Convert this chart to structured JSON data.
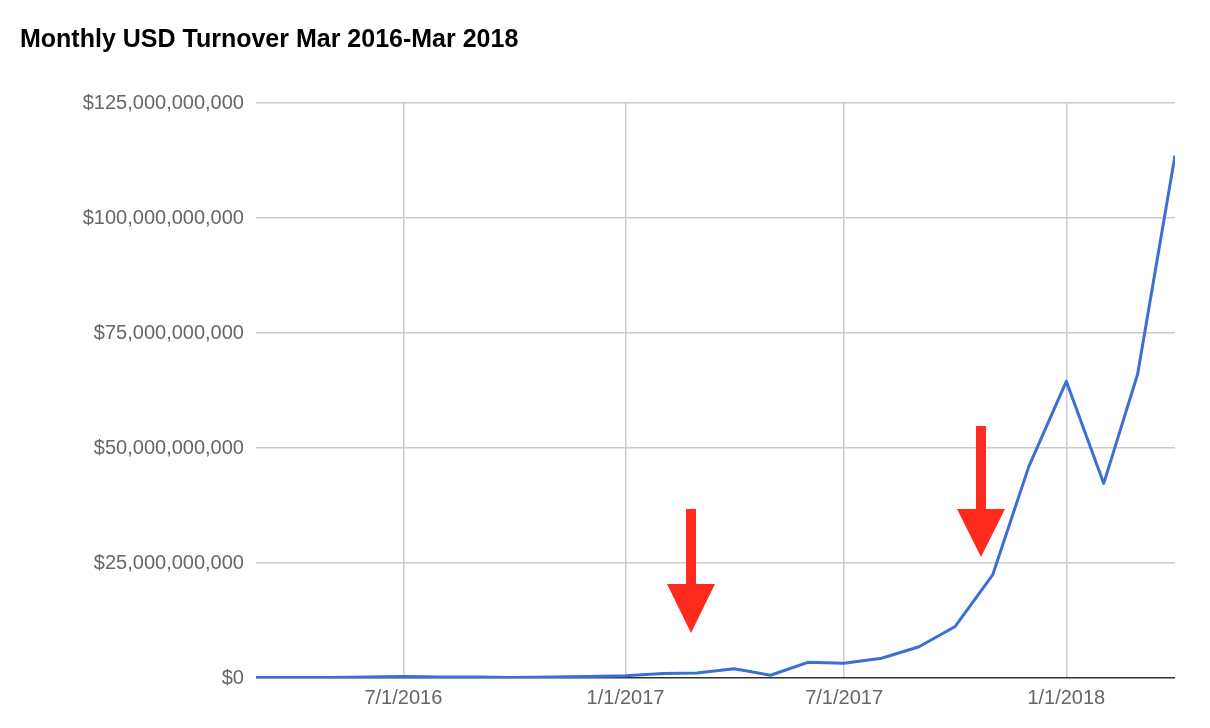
{
  "chart_data": {
    "type": "line",
    "title": "Monthly USD Turnover Mar 2016-Mar 2018",
    "x": [
      "2016-03-01",
      "2016-04-01",
      "2016-05-01",
      "2016-06-01",
      "2016-07-01",
      "2016-08-01",
      "2016-09-01",
      "2016-10-01",
      "2016-11-01",
      "2016-12-01",
      "2017-01-01",
      "2017-02-01",
      "2017-03-01",
      "2017-04-01",
      "2017-05-01",
      "2017-06-01",
      "2017-07-01",
      "2017-08-01",
      "2017-09-01",
      "2017-10-01",
      "2017-11-01",
      "2017-12-01",
      "2018-01-01",
      "2018-02-01",
      "2018-03-01",
      "2018-04-01"
    ],
    "series": [
      {
        "color": "#3c6fd4",
        "values": [
          100000000,
          100000000,
          100000000,
          200000000,
          300000000,
          200000000,
          200000000,
          100000000,
          200000000,
          300000000,
          500000000,
          1000000000,
          1100000000,
          2000000000,
          600000000,
          3400000000,
          3200000000,
          4300000000,
          6800000000,
          11200000000,
          22400000000,
          46000000000,
          64500000000,
          42300000000,
          66000000000,
          113600000000
        ]
      }
    ],
    "xlim": [
      "2016-03-01",
      "2018-04-01"
    ],
    "xticks": [
      {
        "value": "2016-07-01",
        "label": "7/1/2016"
      },
      {
        "value": "2017-01-01",
        "label": "1/1/2017"
      },
      {
        "value": "2017-07-01",
        "label": "7/1/2017"
      },
      {
        "value": "2018-01-01",
        "label": "1/1/2018"
      }
    ],
    "ylim": [
      0,
      125000000000
    ],
    "yticks": [
      {
        "value": 0,
        "label": "$0"
      },
      {
        "value": 25000000000,
        "label": "$25,000,000,000"
      },
      {
        "value": 50000000000,
        "label": "$50,000,000,000"
      },
      {
        "value": 75000000000,
        "label": "$75,000,000,000"
      },
      {
        "value": 100000000000,
        "label": "$100,000,000,000"
      },
      {
        "value": 125000000000,
        "label": "$125,000,000,000"
      }
    ],
    "grid": true,
    "legend": false,
    "marker": "none",
    "line_style": "solid"
  }
}
